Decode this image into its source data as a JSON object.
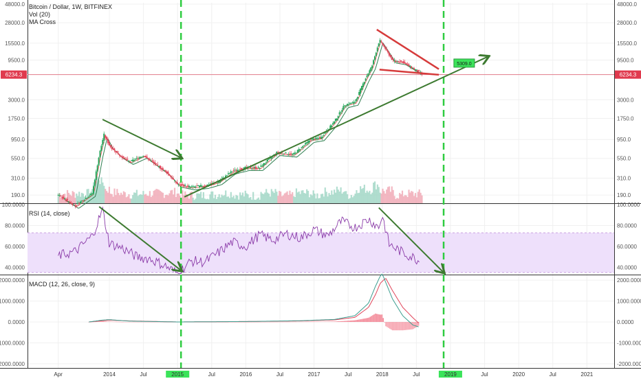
{
  "chart_data": [
    {
      "type": "line",
      "title": "Bitcoin / Dollar, 1W, BITFINEX",
      "indicators": [
        "Vol (20)",
        "MA Cross"
      ],
      "scale": "log",
      "y_ticks": [
        "48000.0",
        "28000.0",
        "15500.0",
        "9500.0",
        "6234.3",
        "3000.0",
        "1750.0",
        "950.0",
        "550.0",
        "310.0",
        "190.0"
      ],
      "y_tick_values": [
        48000,
        28000,
        15500,
        9500,
        3000,
        1750,
        950,
        550,
        310,
        190
      ],
      "ylim": [
        150,
        50000
      ],
      "last_price": "6234.3",
      "last_price_value": 6234.3,
      "x_ticks": [
        "Apr",
        "2014",
        "Jul",
        "2015",
        "Jul",
        "2016",
        "Jul",
        "2017",
        "Jul",
        "2018",
        "Jul",
        "2019",
        "Jul",
        "2020",
        "Jul",
        "2021"
      ],
      "x_tick_values": [
        2013.25,
        2014.0,
        2014.5,
        2015.0,
        2015.5,
        2016.0,
        2016.5,
        2017.0,
        2017.5,
        2018.0,
        2018.5,
        2019.0,
        2019.5,
        2020.0,
        2020.5,
        2021.0
      ],
      "xlim": [
        2012.8,
        2021.4
      ],
      "highlighted_x_ticks": [
        "2015",
        "2019"
      ],
      "annotation": "5309.0",
      "cycle_markers_x": [
        2015.05,
        2018.9
      ],
      "price_series": {
        "x": [
          2013.25,
          2013.5,
          2013.75,
          2013.85,
          2013.92,
          2014.0,
          2014.15,
          2014.3,
          2014.5,
          2014.7,
          2014.85,
          2015.0,
          2015.2,
          2015.4,
          2015.6,
          2015.8,
          2016.0,
          2016.2,
          2016.45,
          2016.7,
          2016.95,
          2017.1,
          2017.3,
          2017.45,
          2017.6,
          2017.75,
          2017.85,
          2017.96,
          2018.05,
          2018.15,
          2018.3,
          2018.45,
          2018.6
        ],
        "values": [
          190,
          140,
          200,
          600,
          1100,
          800,
          600,
          500,
          600,
          450,
          360,
          260,
          240,
          250,
          280,
          380,
          420,
          420,
          650,
          620,
          950,
          1000,
          1600,
          2600,
          2800,
          5500,
          8000,
          17000,
          13000,
          9500,
          9000,
          7500,
          6300
        ]
      }
    },
    {
      "type": "line",
      "title": "RSI (14, close)",
      "y_ticks": [
        "100.0000",
        "80.0000",
        "60.0000",
        "40.0000"
      ],
      "y_tick_values": [
        100,
        80,
        60,
        40
      ],
      "ylim": [
        33,
        100
      ],
      "band": [
        30,
        70
      ],
      "series": {
        "x": [
          2013.25,
          2013.5,
          2013.75,
          2013.9,
          2014.0,
          2014.2,
          2014.4,
          2014.6,
          2014.8,
          2015.0,
          2015.2,
          2015.4,
          2015.6,
          2015.8,
          2016.0,
          2016.2,
          2016.4,
          2016.6,
          2016.8,
          2017.0,
          2017.2,
          2017.4,
          2017.6,
          2017.8,
          2017.95,
          2018.0,
          2018.1,
          2018.3,
          2018.5,
          2018.55
        ],
        "values": [
          51,
          55,
          70,
          95,
          63,
          58,
          50,
          48,
          42,
          34,
          46,
          45,
          54,
          64,
          60,
          71,
          66,
          72,
          68,
          76,
          70,
          84,
          78,
          86,
          78,
          90,
          62,
          54,
          48,
          45
        ]
      }
    },
    {
      "type": "line",
      "title": "MACD (12, 26, close, 9)",
      "y_ticks": [
        "2000.0000",
        "1000.0000",
        "0.0000",
        "-1000.0000",
        "-2000.0000"
      ],
      "y_tick_values": [
        2000,
        1000,
        0,
        -1000,
        -2000
      ],
      "ylim": [
        -2200,
        2200
      ],
      "macd": {
        "x": [
          2013.7,
          2013.9,
          2014.0,
          2014.3,
          2015.0,
          2016.0,
          2016.8,
          2017.3,
          2017.6,
          2017.8,
          2017.9,
          2017.97,
          2018.0,
          2018.05,
          2018.15,
          2018.3,
          2018.45,
          2018.55
        ],
        "values": [
          0,
          90,
          110,
          40,
          0,
          20,
          60,
          120,
          300,
          900,
          1700,
          2200,
          2300,
          1900,
          1100,
          300,
          -150,
          -250
        ]
      },
      "signal": {
        "x": [
          2013.7,
          2013.9,
          2014.0,
          2014.3,
          2015.0,
          2016.0,
          2016.8,
          2017.3,
          2017.6,
          2017.8,
          2017.9,
          2017.97,
          2018.05,
          2018.15,
          2018.3,
          2018.45,
          2018.55
        ],
        "values": [
          0,
          60,
          90,
          50,
          0,
          20,
          50,
          100,
          220,
          700,
          1300,
          1850,
          2100,
          1500,
          700,
          200,
          -100
        ]
      }
    }
  ]
}
